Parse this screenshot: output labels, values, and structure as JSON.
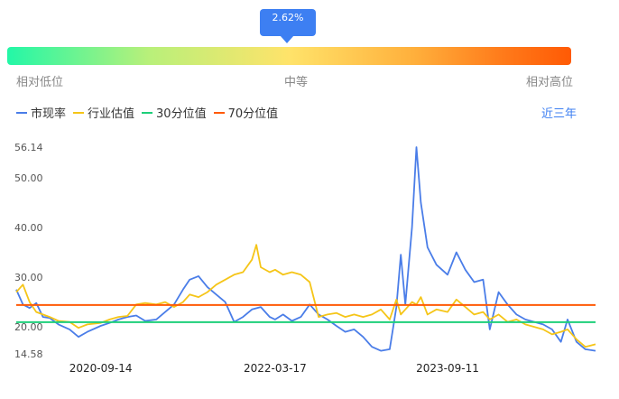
{
  "percentile": {
    "tooltip": "2.62%",
    "value_pct": 2.62,
    "labels": [
      "相对低位",
      "中等",
      "相对高位"
    ]
  },
  "period_selector": "近三年",
  "colors": {
    "pe": "#4a7de8",
    "industry": "#f5c518",
    "p30": "#1ecf7a",
    "p70": "#ff5a05",
    "accent": "#3d7ff2"
  },
  "chart_data": {
    "type": "line",
    "title": "",
    "xlabel": "",
    "ylabel": "",
    "ylim": [
      14.58,
      56.14
    ],
    "y_ticks": [
      "56.14",
      "50.00",
      "40.00",
      "30.00",
      "20.00",
      "14.58"
    ],
    "x_ticks": [
      "2020-09-14",
      "2022-03-17",
      "2023-09-11"
    ],
    "x_range": [
      "2019-12-23",
      "2024-12-20"
    ],
    "series": [
      {
        "name": "市现率",
        "color": "#4a7de8",
        "points": [
          [
            "2019-12-23",
            27.5
          ],
          [
            "2020-01-13",
            24.5
          ],
          [
            "2020-02-03",
            23.8
          ],
          [
            "2020-02-24",
            24.8
          ],
          [
            "2020-03-16",
            22.0
          ],
          [
            "2020-04-06",
            21.8
          ],
          [
            "2020-05-04",
            20.5
          ],
          [
            "2020-06-08",
            19.5
          ],
          [
            "2020-07-06",
            18.0
          ],
          [
            "2020-08-03",
            19.0
          ],
          [
            "2020-09-14",
            20.2
          ],
          [
            "2020-10-12",
            20.8
          ],
          [
            "2020-11-09",
            21.5
          ],
          [
            "2020-12-07",
            22.0
          ],
          [
            "2021-01-04",
            22.3
          ],
          [
            "2021-02-01",
            21.2
          ],
          [
            "2021-03-08",
            21.5
          ],
          [
            "2021-04-05",
            23.0
          ],
          [
            "2021-05-03",
            24.5
          ],
          [
            "2021-05-31",
            27.5
          ],
          [
            "2021-06-21",
            29.5
          ],
          [
            "2021-07-19",
            30.2
          ],
          [
            "2021-08-16",
            28.0
          ],
          [
            "2021-09-13",
            26.5
          ],
          [
            "2021-10-11",
            25.0
          ],
          [
            "2021-11-08",
            21.0
          ],
          [
            "2021-12-06",
            22.0
          ],
          [
            "2022-01-03",
            23.5
          ],
          [
            "2022-01-31",
            24.0
          ],
          [
            "2022-02-28",
            22.0
          ],
          [
            "2022-03-17",
            21.5
          ],
          [
            "2022-04-11",
            22.5
          ],
          [
            "2022-05-09",
            21.2
          ],
          [
            "2022-06-06",
            22.0
          ],
          [
            "2022-07-04",
            24.5
          ],
          [
            "2022-08-01",
            22.5
          ],
          [
            "2022-08-29",
            21.5
          ],
          [
            "2022-09-26",
            20.2
          ],
          [
            "2022-10-24",
            19.0
          ],
          [
            "2022-11-21",
            19.5
          ],
          [
            "2022-12-19",
            18.0
          ],
          [
            "2023-01-16",
            16.0
          ],
          [
            "2023-02-13",
            15.2
          ],
          [
            "2023-03-13",
            15.5
          ],
          [
            "2023-04-03",
            24.0
          ],
          [
            "2023-04-17",
            34.5
          ],
          [
            "2023-05-01",
            24.5
          ],
          [
            "2023-05-22",
            40.0
          ],
          [
            "2023-06-05",
            56.14
          ],
          [
            "2023-06-19",
            45.0
          ],
          [
            "2023-07-10",
            36.0
          ],
          [
            "2023-08-07",
            32.5
          ],
          [
            "2023-09-11",
            30.5
          ],
          [
            "2023-10-09",
            35.0
          ],
          [
            "2023-11-06",
            31.5
          ],
          [
            "2023-12-04",
            29.0
          ],
          [
            "2024-01-01",
            29.5
          ],
          [
            "2024-01-22",
            19.5
          ],
          [
            "2024-02-19",
            27.0
          ],
          [
            "2024-03-18",
            24.5
          ],
          [
            "2024-04-15",
            22.5
          ],
          [
            "2024-05-13",
            21.5
          ],
          [
            "2024-06-10",
            21.0
          ],
          [
            "2024-07-08",
            20.5
          ],
          [
            "2024-08-05",
            19.5
          ],
          [
            "2024-09-02",
            17.0
          ],
          [
            "2024-09-23",
            21.5
          ],
          [
            "2024-10-21",
            17.0
          ],
          [
            "2024-11-18",
            15.5
          ],
          [
            "2024-12-20",
            15.2
          ]
        ]
      },
      {
        "name": "行业估值",
        "color": "#f5c518",
        "points": [
          [
            "2019-12-23",
            27.0
          ],
          [
            "2020-01-13",
            28.5
          ],
          [
            "2020-02-03",
            25.0
          ],
          [
            "2020-02-24",
            23.0
          ],
          [
            "2020-03-16",
            22.5
          ],
          [
            "2020-04-06",
            22.0
          ],
          [
            "2020-05-04",
            21.2
          ],
          [
            "2020-06-08",
            21.0
          ],
          [
            "2020-07-06",
            19.8
          ],
          [
            "2020-08-03",
            20.5
          ],
          [
            "2020-09-14",
            20.8
          ],
          [
            "2020-10-12",
            21.5
          ],
          [
            "2020-11-09",
            22.0
          ],
          [
            "2020-12-07",
            22.2
          ],
          [
            "2021-01-04",
            24.5
          ],
          [
            "2021-02-01",
            24.8
          ],
          [
            "2021-03-08",
            24.5
          ],
          [
            "2021-04-05",
            25.0
          ],
          [
            "2021-05-03",
            24.0
          ],
          [
            "2021-05-31",
            25.0
          ],
          [
            "2021-06-21",
            26.5
          ],
          [
            "2021-07-19",
            26.0
          ],
          [
            "2021-08-16",
            27.0
          ],
          [
            "2021-09-13",
            28.5
          ],
          [
            "2021-10-11",
            29.5
          ],
          [
            "2021-11-08",
            30.5
          ],
          [
            "2021-12-06",
            31.0
          ],
          [
            "2022-01-03",
            33.5
          ],
          [
            "2022-01-17",
            36.5
          ],
          [
            "2022-01-31",
            32.0
          ],
          [
            "2022-02-28",
            31.0
          ],
          [
            "2022-03-17",
            31.5
          ],
          [
            "2022-04-11",
            30.5
          ],
          [
            "2022-05-09",
            31.0
          ],
          [
            "2022-06-06",
            30.5
          ],
          [
            "2022-07-04",
            29.0
          ],
          [
            "2022-08-01",
            22.0
          ],
          [
            "2022-08-29",
            22.5
          ],
          [
            "2022-09-26",
            22.8
          ],
          [
            "2022-10-24",
            22.0
          ],
          [
            "2022-11-21",
            22.5
          ],
          [
            "2022-12-19",
            22.0
          ],
          [
            "2023-01-16",
            22.5
          ],
          [
            "2023-02-13",
            23.5
          ],
          [
            "2023-03-13",
            21.5
          ],
          [
            "2023-04-03",
            25.5
          ],
          [
            "2023-04-17",
            22.5
          ],
          [
            "2023-05-01",
            23.5
          ],
          [
            "2023-05-22",
            25.0
          ],
          [
            "2023-06-05",
            24.5
          ],
          [
            "2023-06-19",
            26.0
          ],
          [
            "2023-07-10",
            22.5
          ],
          [
            "2023-08-07",
            23.5
          ],
          [
            "2023-09-11",
            23.0
          ],
          [
            "2023-10-09",
            25.5
          ],
          [
            "2023-11-06",
            24.0
          ],
          [
            "2023-12-04",
            22.5
          ],
          [
            "2024-01-01",
            23.0
          ],
          [
            "2024-01-22",
            21.5
          ],
          [
            "2024-02-19",
            22.5
          ],
          [
            "2024-03-18",
            21.0
          ],
          [
            "2024-04-15",
            21.5
          ],
          [
            "2024-05-13",
            20.5
          ],
          [
            "2024-06-10",
            20.0
          ],
          [
            "2024-07-08",
            19.5
          ],
          [
            "2024-08-05",
            18.5
          ],
          [
            "2024-09-02",
            19.0
          ],
          [
            "2024-09-23",
            19.5
          ],
          [
            "2024-10-21",
            17.5
          ],
          [
            "2024-11-18",
            16.0
          ],
          [
            "2024-12-20",
            16.5
          ]
        ]
      },
      {
        "name": "30分位值",
        "color": "#1ecf7a",
        "constant": 20.95
      },
      {
        "name": "70分位值",
        "color": "#ff5a05",
        "constant": 24.4
      }
    ]
  }
}
